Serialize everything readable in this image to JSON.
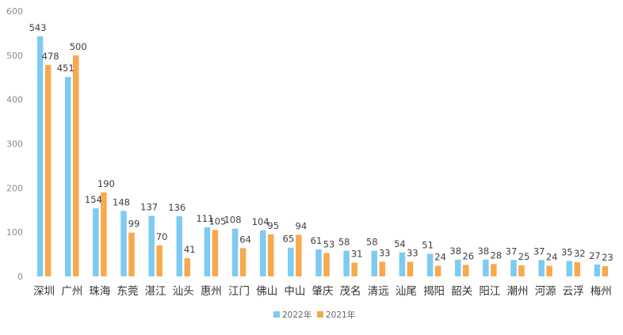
{
  "chart_data": {
    "type": "bar",
    "title": "",
    "xlabel": "",
    "ylabel": "",
    "ylim": [
      0,
      600
    ],
    "yticks": [
      0,
      100,
      200,
      300,
      400,
      500,
      600
    ],
    "grid": false,
    "legend_position": "bottom-center",
    "categories": [
      "深圳",
      "广州",
      "珠海",
      "东莞",
      "湛江",
      "汕头",
      "惠州",
      "江门",
      "佛山",
      "中山",
      "肇庆",
      "茂名",
      "清远",
      "汕尾",
      "揭阳",
      "韶关",
      "阳江",
      "潮州",
      "河源",
      "云浮",
      "梅州"
    ],
    "series": [
      {
        "name": "2022年",
        "color": "#7ecbf1",
        "values": [
          543,
          451,
          154,
          148,
          137,
          136,
          111,
          108,
          104,
          65,
          61,
          58,
          58,
          54,
          51,
          38,
          38,
          37,
          37,
          35,
          27
        ]
      },
      {
        "name": "2021年",
        "color": "#f8a94c",
        "values": [
          478,
          500,
          190,
          99,
          70,
          41,
          105,
          64,
          95,
          94,
          53,
          31,
          33,
          33,
          24,
          26,
          28,
          25,
          24,
          32,
          23
        ]
      }
    ]
  }
}
